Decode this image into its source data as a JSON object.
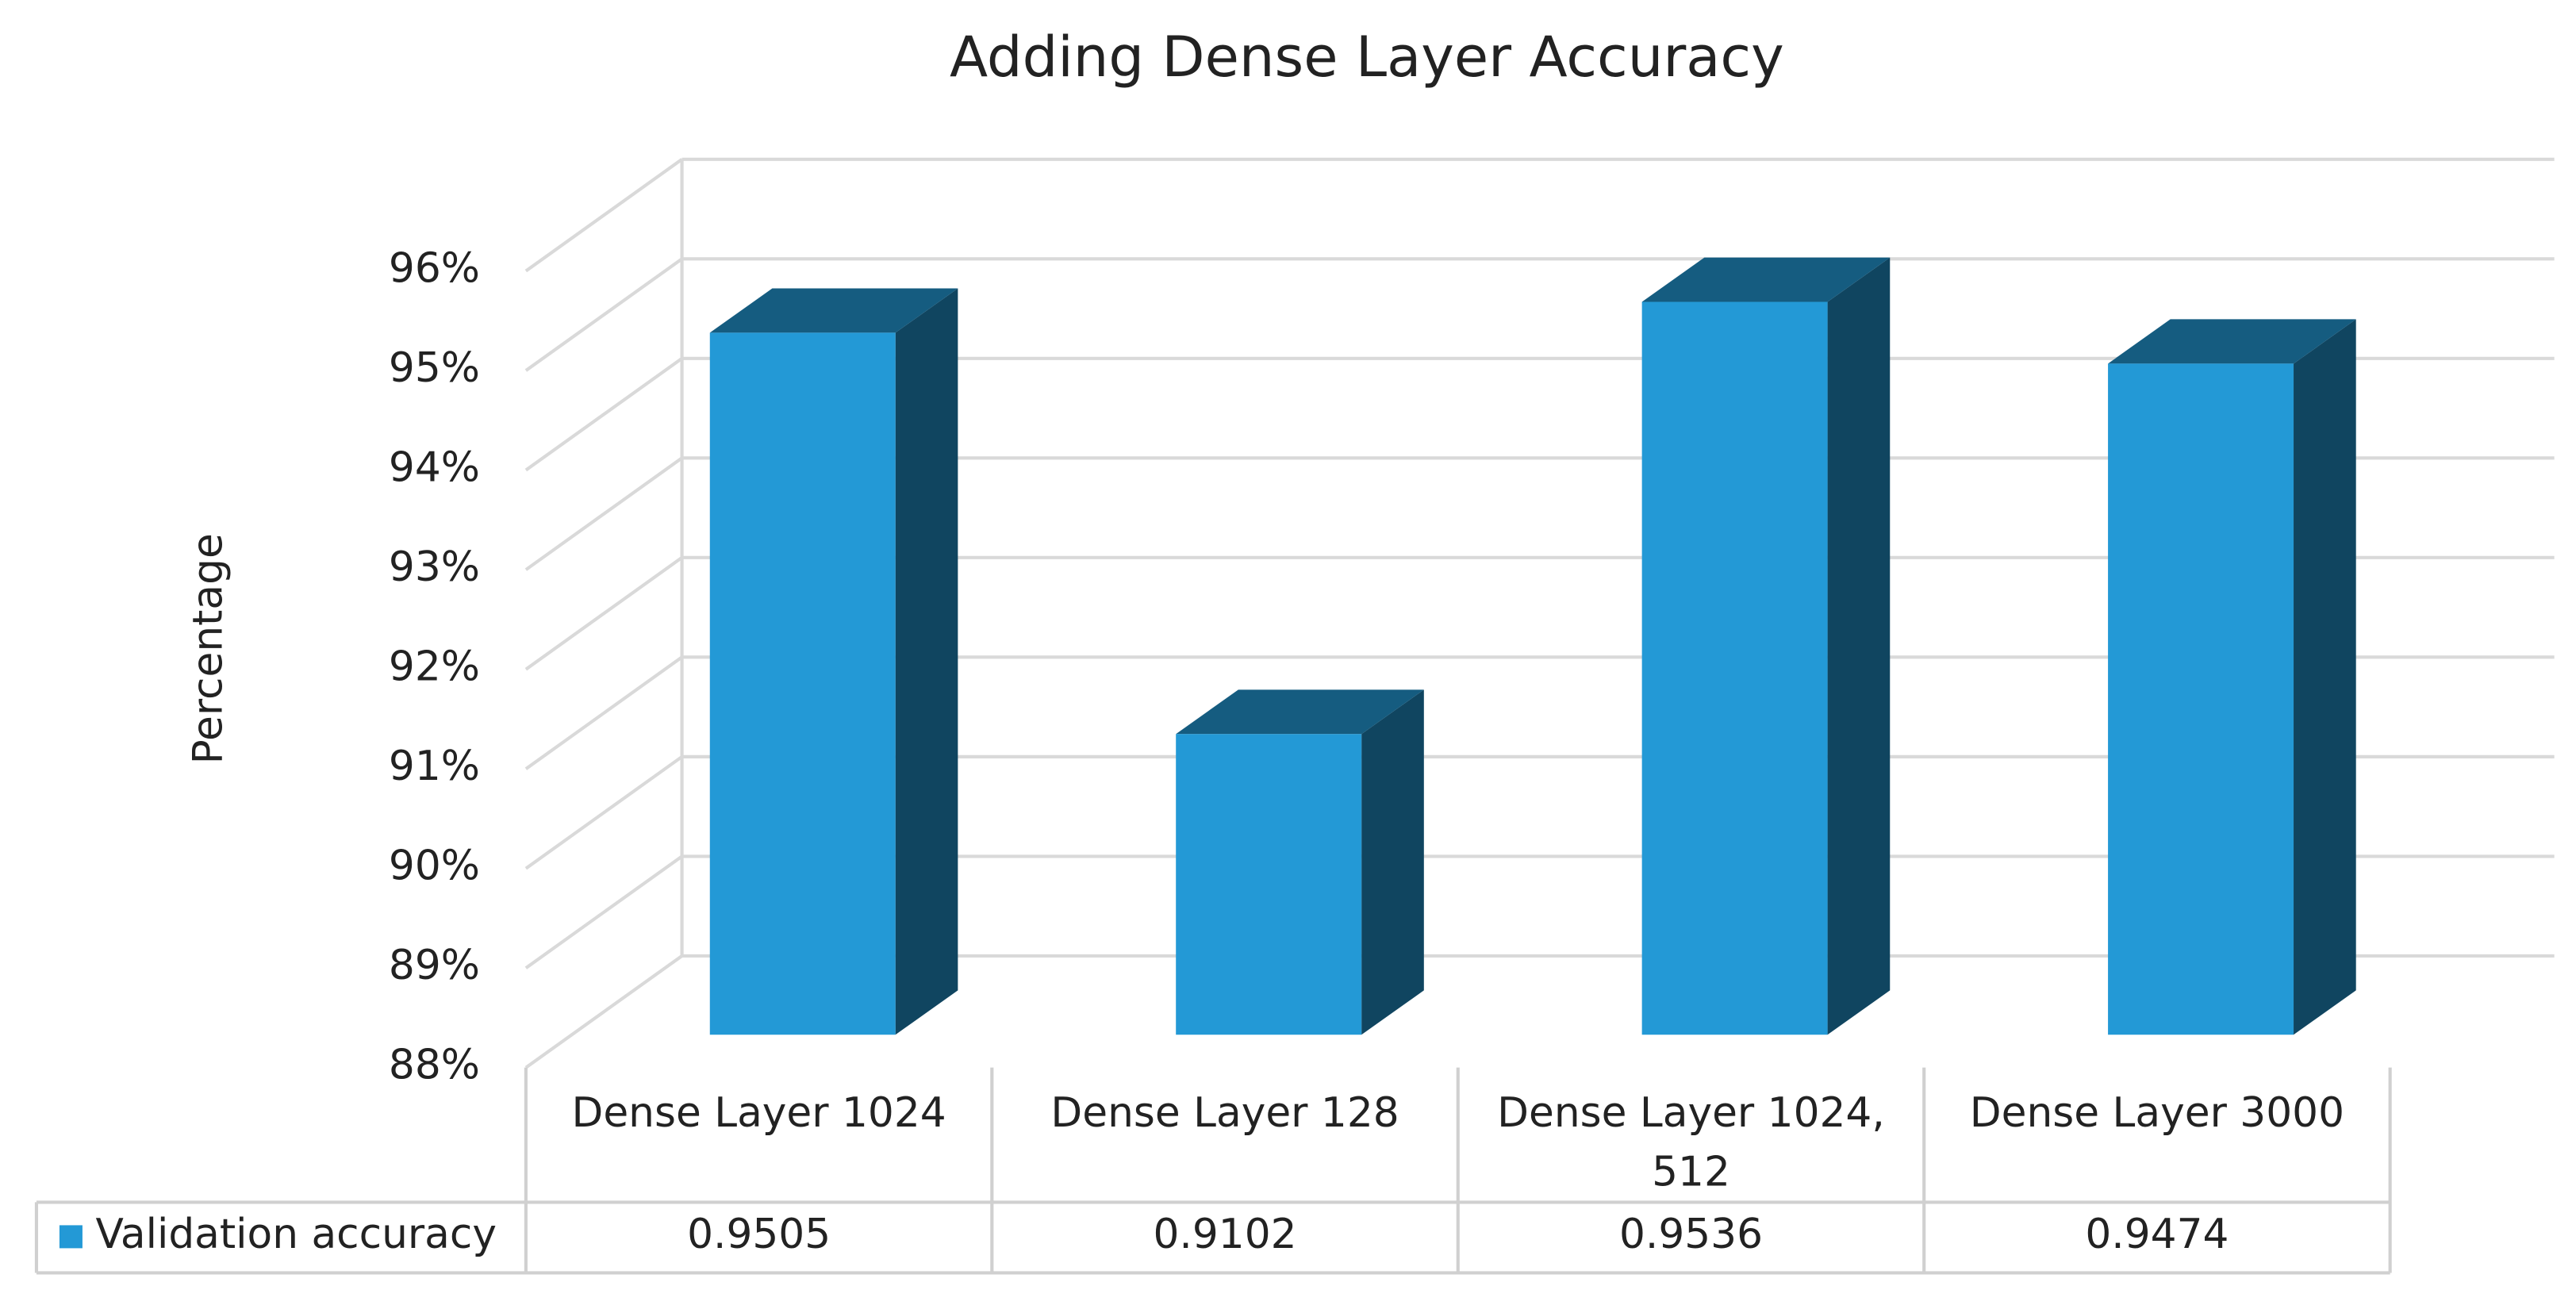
{
  "chart_data": {
    "type": "bar3d",
    "title": "Adding Dense Layer Accuracy",
    "y_label": "Percentage",
    "categories": [
      "Dense Layer 1024",
      "Dense Layer 128",
      "Dense Layer 1024, 512",
      "Dense Layer 3000"
    ],
    "series": [
      {
        "name": "Validation accuracy",
        "color": "#2399d6",
        "values": [
          0.9505,
          0.9102,
          0.9536,
          0.9474
        ]
      }
    ],
    "ylim": [
      0.88,
      0.96
    ],
    "yticks": [
      {
        "value": 0.88,
        "label": "88%"
      },
      {
        "value": 0.89,
        "label": "89%"
      },
      {
        "value": 0.9,
        "label": "90%"
      },
      {
        "value": 0.91,
        "label": "91%"
      },
      {
        "value": 0.92,
        "label": "92%"
      },
      {
        "value": 0.93,
        "label": "93%"
      },
      {
        "value": 0.94,
        "label": "94%"
      },
      {
        "value": 0.95,
        "label": "95%"
      },
      {
        "value": 0.96,
        "label": "96%"
      }
    ],
    "grid": true,
    "legend": "data-table"
  }
}
